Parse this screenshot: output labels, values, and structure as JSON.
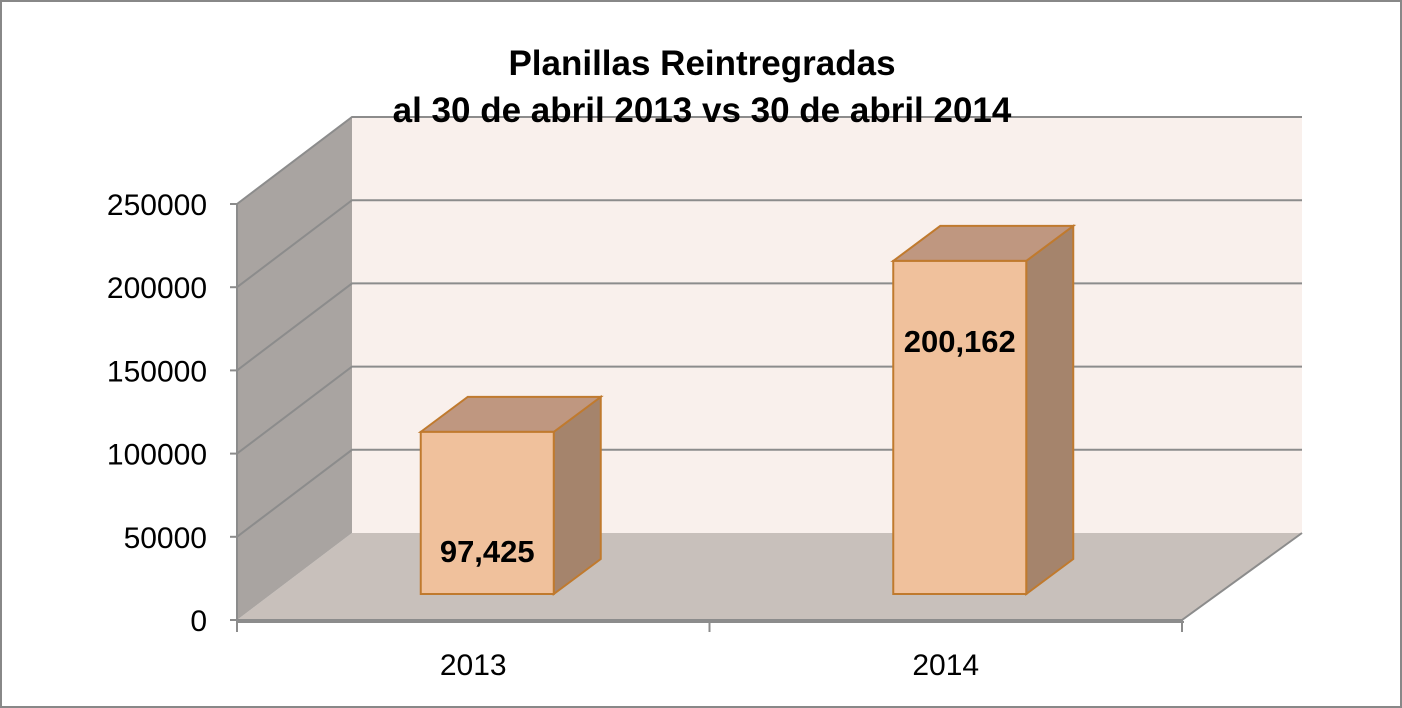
{
  "chart_data": {
    "type": "bar",
    "title": "Planillas Reintregradas",
    "subtitle": "al 30 de abril 2013 vs 30 de abril 2014",
    "categories": [
      "2013",
      "2014"
    ],
    "values": [
      97425,
      200162
    ],
    "data_labels": [
      "97,425",
      "200,162"
    ],
    "y_ticks": [
      "0",
      "50000",
      "100000",
      "150000",
      "200000",
      "250000"
    ],
    "ylim": [
      0,
      250000
    ],
    "grid": true,
    "legend": "none",
    "style": "3d-column",
    "colors": {
      "bar_front": "#F0C19C",
      "bar_top": "#BF9780",
      "bar_side": "#A5846C",
      "bar_edge": "#C07A2E",
      "back_wall": "#F9F0EC",
      "side_wall": "#A9A4A1",
      "floor": "#C8C0BB",
      "grid": "#8C8C8C"
    }
  }
}
